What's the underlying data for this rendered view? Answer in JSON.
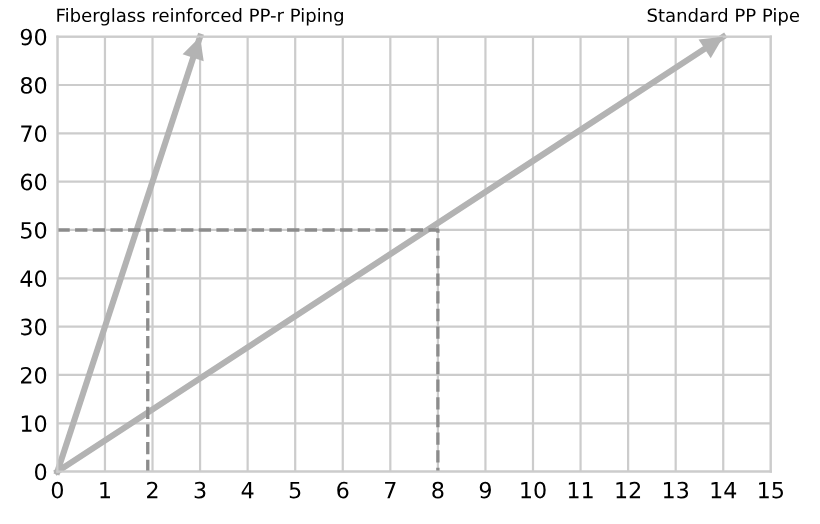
{
  "chart_data": {
    "type": "line",
    "xlim": [
      0,
      15
    ],
    "ylim": [
      0,
      90
    ],
    "xticks": [
      0,
      1,
      2,
      3,
      4,
      5,
      6,
      7,
      8,
      9,
      10,
      11,
      12,
      13,
      14,
      15
    ],
    "yticks": [
      0,
      10,
      20,
      30,
      40,
      50,
      60,
      70,
      80,
      90
    ],
    "grid": true,
    "marker": "none",
    "legend": false,
    "series": [
      {
        "name": "Fiberglass reinforced PP-r Piping",
        "color": "#b3b3b3",
        "x": [
          0,
          3
        ],
        "values": [
          0,
          90
        ]
      },
      {
        "name": "Standard PP Pipe",
        "color": "#b3b3b3",
        "x": [
          0,
          14
        ],
        "values": [
          0,
          90
        ]
      },
      {
        "color": "#8c8c8c",
        "line_style": "dashed",
        "x": [
          0,
          8,
          8
        ],
        "values": [
          50,
          50,
          0
        ]
      },
      {
        "color": "#8c8c8c",
        "line_style": "dashed",
        "x": [
          1.9,
          1.9
        ],
        "values": [
          50,
          0
        ]
      }
    ]
  }
}
